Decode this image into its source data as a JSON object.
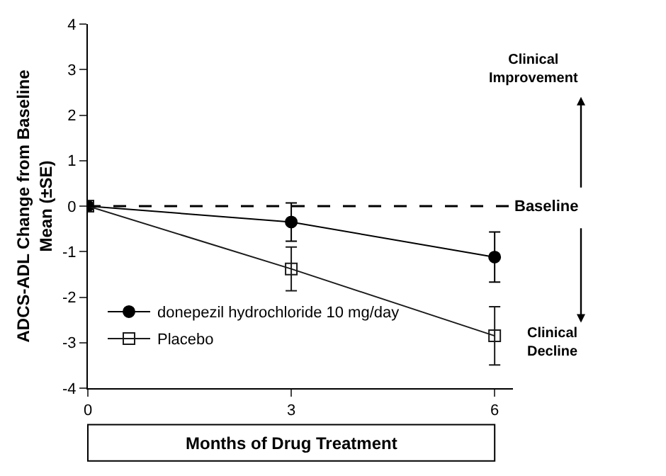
{
  "chart_data": {
    "type": "line",
    "xlabel": "Months of Drug Treatment",
    "ylabel": "ADCS-ADL Change from Baseline\nMean (±SE)",
    "x": [
      0,
      3,
      6
    ],
    "xlim": [
      0,
      6.27
    ],
    "xticks": [
      0,
      3,
      6
    ],
    "ylim": [
      -4,
      4
    ],
    "yticks": [
      -4,
      -3,
      -2,
      -1,
      0,
      1,
      2,
      3,
      4
    ],
    "series": [
      {
        "name": "donepezil hydrochloride 10 mg/day",
        "color": "#000000",
        "marker": "circle",
        "values": [
          0,
          -0.35,
          -1.12
        ],
        "errors": [
          null,
          0.42,
          0.55
        ]
      },
      {
        "name": "Placebo",
        "color": "#1a1a1a",
        "marker": "square",
        "values": [
          0,
          -1.38,
          -2.85
        ],
        "errors": [
          null,
          0.48,
          0.64
        ]
      }
    ],
    "ref_lines": [
      {
        "axis": "y",
        "value": 0,
        "label": "Baseline",
        "line_style": "dashed",
        "color": "#000000"
      }
    ],
    "annotations": [
      "Clinical\nImprovement",
      "Clinical\nDecline"
    ],
    "legend": "bottom left",
    "line_style": "solid"
  }
}
